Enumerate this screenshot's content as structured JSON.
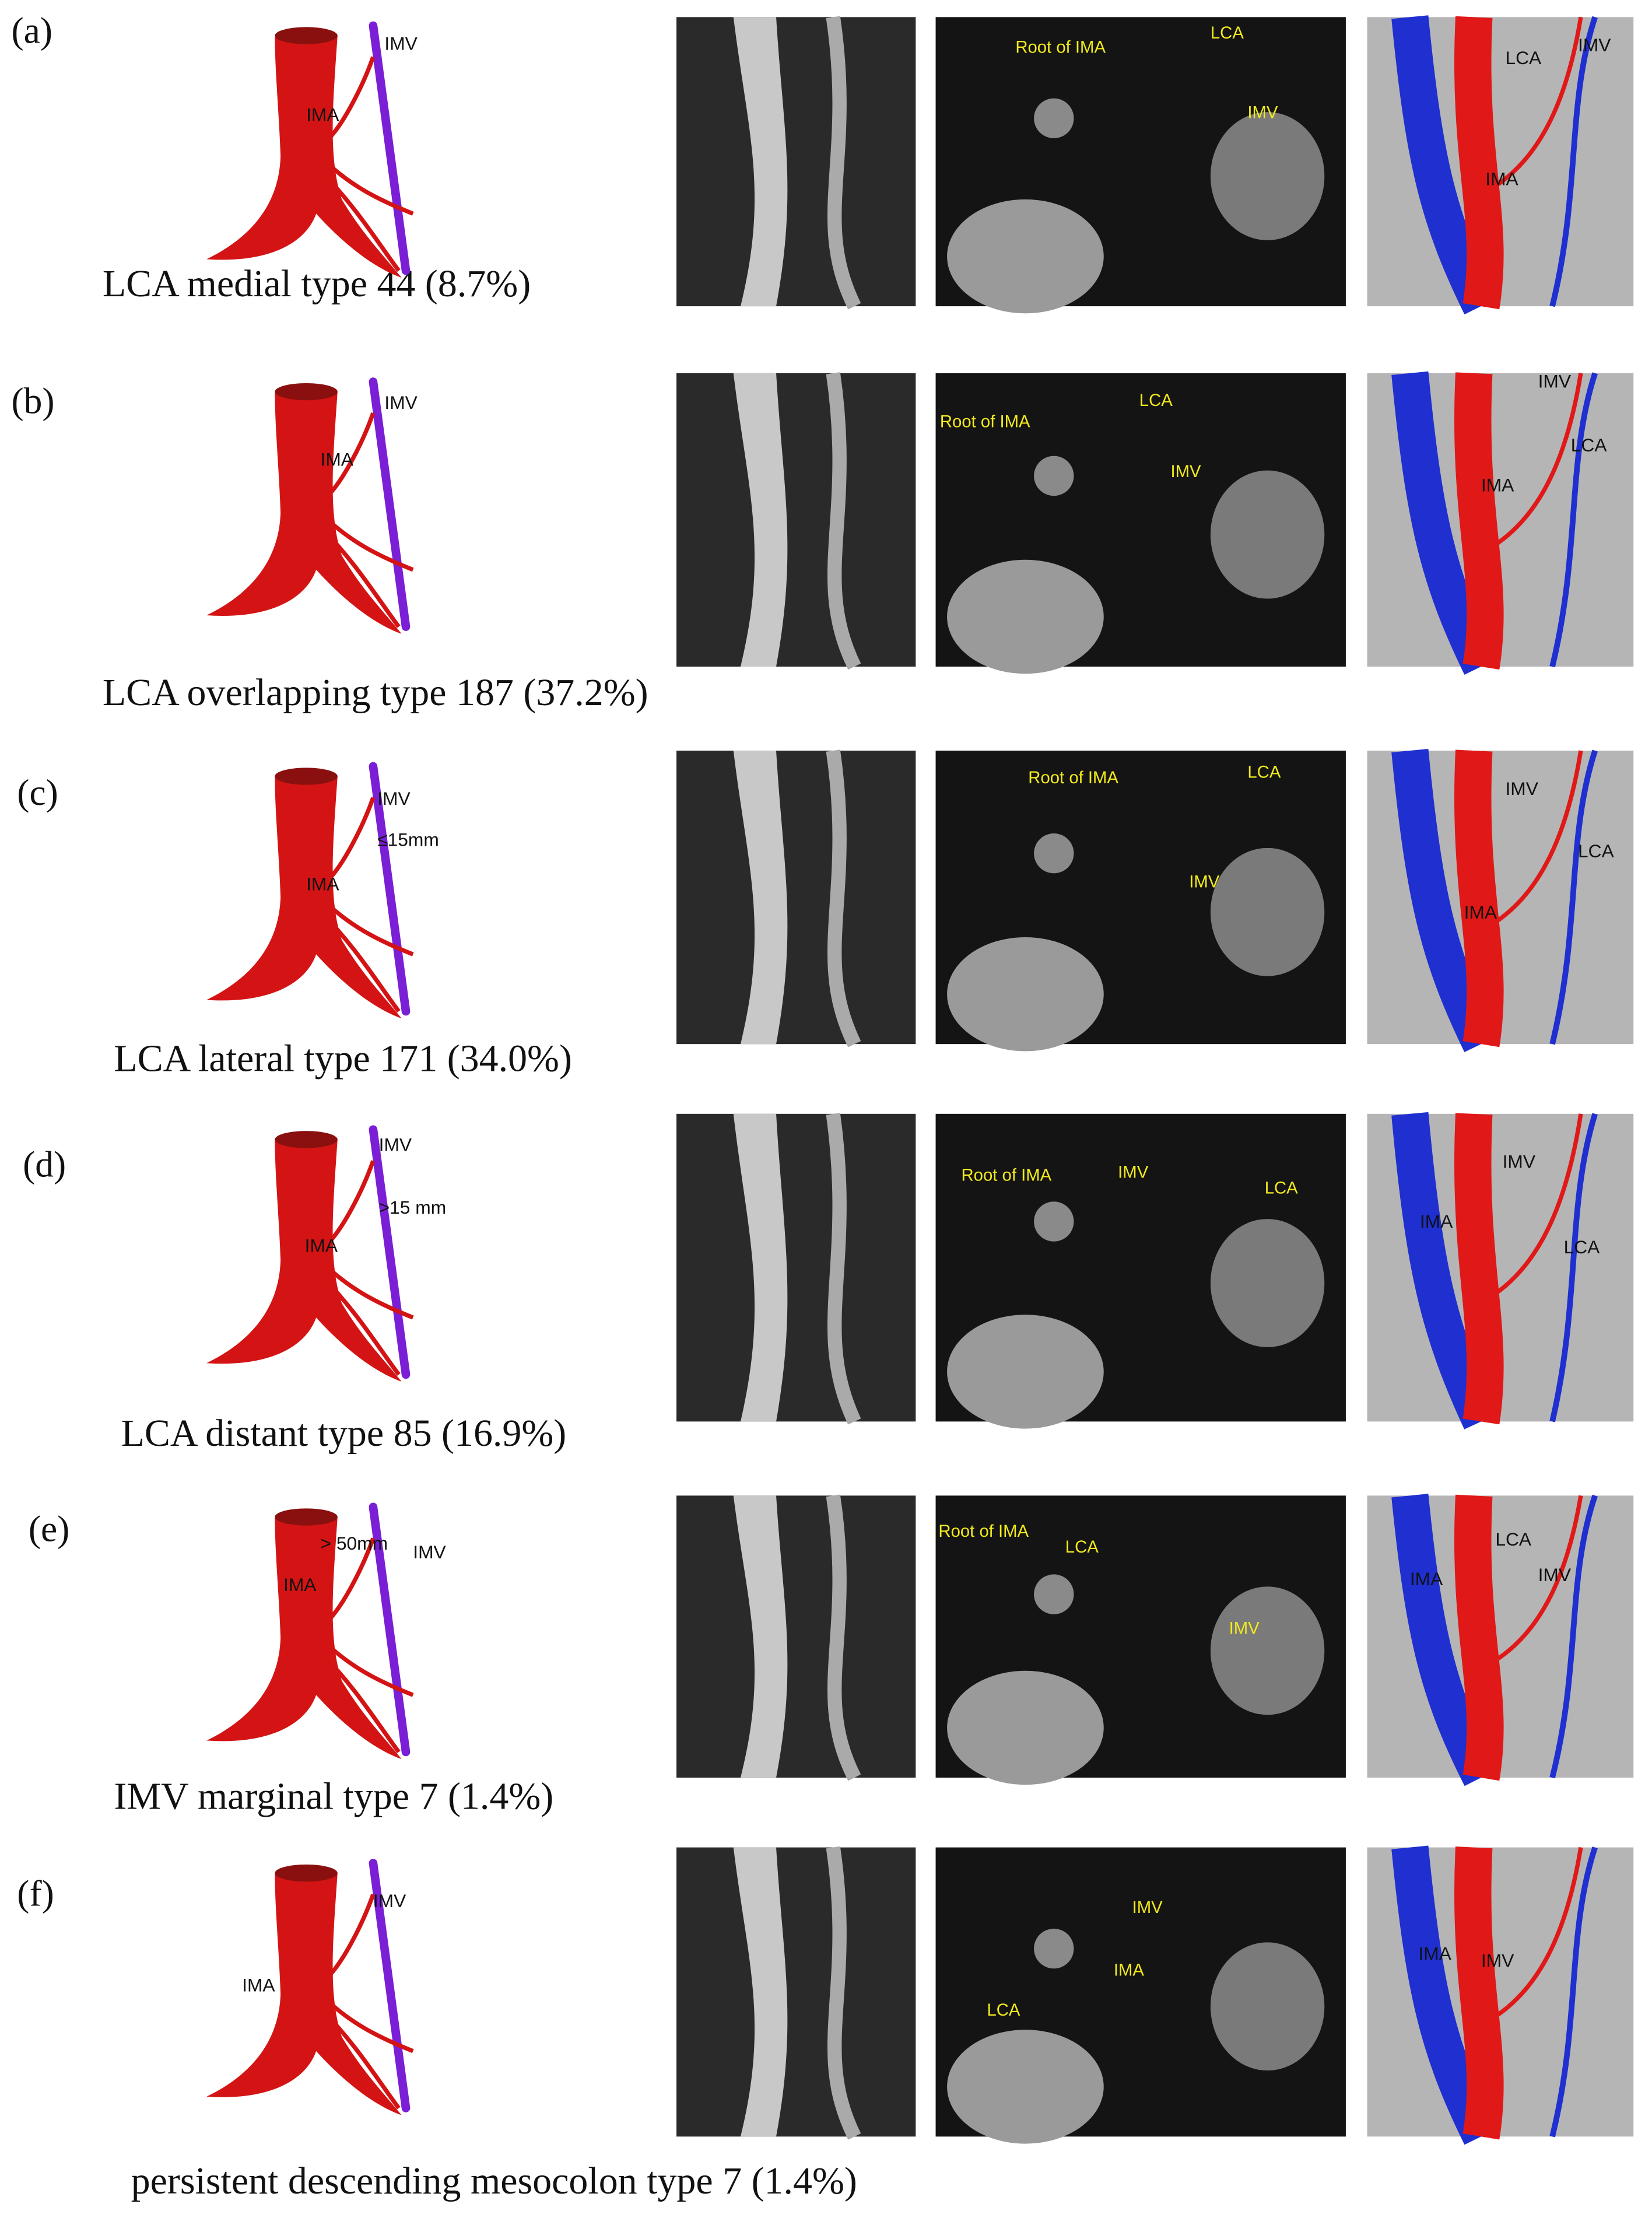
{
  "panels": [
    {
      "label": "(a)",
      "caption": "LCA medial type 44 (8.7%)",
      "diagram": [
        "IMV",
        "IMA"
      ],
      "ct": [
        "Root of IMA",
        "LCA",
        "IMV"
      ],
      "render": [
        "LCA",
        "IMV",
        "IMA"
      ]
    },
    {
      "label": "(b)",
      "caption": "LCA overlapping type 187 (37.2%)",
      "diagram": [
        "IMV",
        "IMA"
      ],
      "ct": [
        "Root of IMA",
        "LCA",
        "IMV"
      ],
      "render": [
        "IMV",
        "LCA",
        "IMA"
      ]
    },
    {
      "label": "(c)",
      "caption": "LCA lateral type  171 (34.0%)",
      "diagram": [
        "IMV",
        "≤15mm",
        "IMA"
      ],
      "ct": [
        "Root of IMA",
        "LCA",
        "IMV"
      ],
      "render": [
        "IMV",
        "LCA",
        "IMA"
      ]
    },
    {
      "label": "(d)",
      "caption": "LCA distant type 85 (16.9%)",
      "diagram": [
        "IMV",
        ">15 mm",
        "IMA"
      ],
      "ct": [
        "Root of IMA",
        "IMV",
        "LCA"
      ],
      "render": [
        "IMV",
        "IMA",
        "LCA"
      ]
    },
    {
      "label": "(e)",
      "caption": "IMV marginal type 7 (1.4%)",
      "diagram": [
        "IMV",
        "> 50mm",
        "IMA"
      ],
      "ct": [
        "Root of IMA",
        "LCA",
        "IMV"
      ],
      "render": [
        "LCA",
        "IMA",
        "IMV"
      ]
    },
    {
      "label": "(f)",
      "caption": "persistent descending mesocolon type 7 (1.4%)",
      "diagram": [
        "IMV",
        "IMA"
      ],
      "ct": [
        "IMV",
        "IMA",
        "LCA"
      ],
      "render": [
        "IMA",
        "IMV"
      ]
    }
  ]
}
